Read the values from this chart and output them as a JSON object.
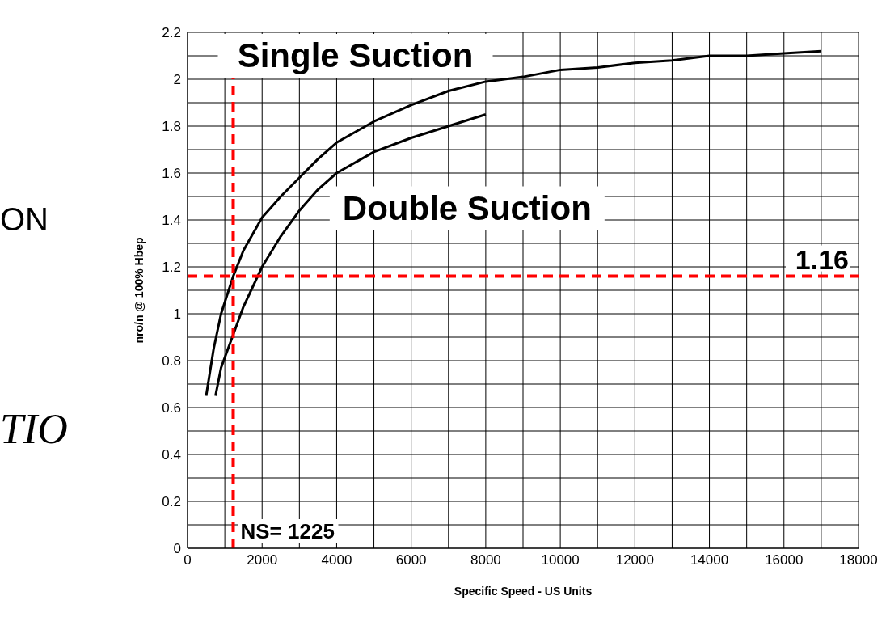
{
  "chart_data": {
    "type": "line",
    "xlabel": "Specific Speed - US Units",
    "ylabel": "nro/n @ 100% Hbep",
    "x": [
      500,
      700,
      900,
      1225,
      1500,
      2000,
      2500,
      3000,
      3500,
      4000,
      5000,
      6000,
      7000,
      8000,
      9000,
      10000,
      11000,
      12000,
      13000,
      14000,
      15000,
      16000,
      17000
    ],
    "series": [
      {
        "name": "Single Suction",
        "color": "#000000",
        "values": [
          0.65,
          0.85,
          1.0,
          1.16,
          1.27,
          1.41,
          1.5,
          1.58,
          1.66,
          1.73,
          1.82,
          1.89,
          1.95,
          1.99,
          2.01,
          2.04,
          2.05,
          2.07,
          2.08,
          2.1,
          2.1,
          2.11,
          2.12
        ]
      },
      {
        "name": "Double Suction",
        "color": "#000000",
        "x": [
          750,
          900,
          1200,
          1500,
          2000,
          2500,
          3000,
          3500,
          4000,
          5000,
          6000,
          7000,
          8000
        ],
        "values": [
          0.65,
          0.77,
          0.9,
          1.03,
          1.2,
          1.33,
          1.44,
          1.53,
          1.6,
          1.69,
          1.75,
          1.8,
          1.85
        ]
      }
    ],
    "xlim": [
      0,
      18000
    ],
    "xticks": [
      0,
      {
        "value": 1000,
        "label": null
      },
      2000,
      {
        "value": 3000,
        "label": null
      },
      4000,
      {
        "value": 5000,
        "label": null
      },
      6000,
      {
        "value": 7000,
        "label": null
      },
      8000,
      {
        "value": 9000,
        "label": null
      },
      10000,
      {
        "value": 11000,
        "label": null
      },
      12000,
      {
        "value": 13000,
        "label": null
      },
      14000,
      {
        "value": 15000,
        "label": null
      },
      16000,
      {
        "value": 17000,
        "label": null
      },
      18000
    ],
    "ylim": [
      0,
      2.2
    ],
    "yticks": [
      0,
      {
        "value": 0.1,
        "label": null
      },
      0.2,
      {
        "value": 0.3,
        "label": null
      },
      0.4,
      {
        "value": 0.5,
        "label": null
      },
      0.6,
      {
        "value": 0.7,
        "label": null
      },
      0.8,
      {
        "value": 0.9,
        "label": null
      },
      1,
      {
        "value": 1.1,
        "label": null
      },
      1.2,
      {
        "value": 1.3,
        "label": null
      },
      1.4,
      {
        "value": 1.5,
        "label": null
      },
      1.6,
      {
        "value": 1.7,
        "label": null
      },
      1.8,
      {
        "value": 1.9,
        "label": null
      },
      2,
      {
        "value": 2.1,
        "label": null
      },
      2.2
    ],
    "ref_lines": [
      {
        "axis": "y",
        "value": 1.16,
        "label": "1.16",
        "color": "#ff0000",
        "line_style": "dashed"
      },
      {
        "axis": "x",
        "value": 1225,
        "label": "NS= 1225",
        "color": "#ff0000",
        "line_style": "dashed"
      }
    ],
    "annotations": [
      "ON",
      "TIO"
    ],
    "grid": true,
    "legend": false,
    "marker": "none",
    "line_style": "solid"
  }
}
